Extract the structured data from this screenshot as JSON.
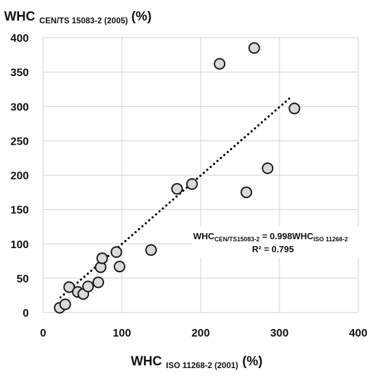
{
  "chart_data": {
    "type": "scatter",
    "xlabel": {
      "main": "WHC",
      "sub": "ISO 11268-2 (2001)",
      "unit": "(%)"
    },
    "ylabel": {
      "main": "WHC",
      "sub": "CEN/TS 15083-2 (2005)",
      "unit": "(%)"
    },
    "xlim": [
      0,
      400
    ],
    "ylim": [
      0,
      400
    ],
    "xticks": [
      0,
      100,
      200,
      300,
      400
    ],
    "yticks": [
      0,
      50,
      100,
      150,
      200,
      250,
      300,
      350,
      400
    ],
    "grid": true,
    "series": [
      {
        "marker": "circle",
        "color": "#d9d9d9",
        "x": [
          21,
          28,
          33,
          44,
          51,
          57,
          70,
          73,
          75,
          93,
          97,
          137,
          170,
          189,
          224,
          258,
          268,
          285,
          319
        ],
        "y": [
          7,
          12,
          37,
          30,
          27,
          38,
          44,
          66,
          79,
          88,
          67,
          91,
          180,
          187,
          362,
          175,
          385,
          210,
          297
        ]
      }
    ],
    "trendline": {
      "style": "dotted",
      "x": [
        22,
        315
      ],
      "y": [
        22,
        314
      ]
    },
    "annotation": {
      "line1": {
        "lhs_main": "WHC",
        "lhs_sub": "CEN/TS15083-2",
        "middle": " = 0.998WHC",
        "rhs_sub": "ISO 11268-2"
      },
      "line2": "R² = 0.795"
    }
  }
}
